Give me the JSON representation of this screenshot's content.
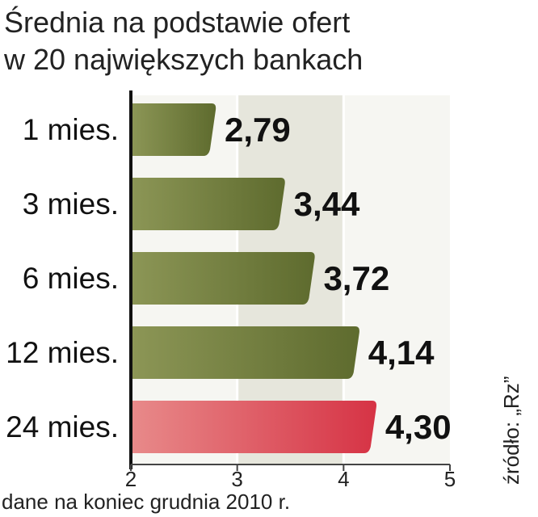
{
  "chart_data": {
    "type": "bar",
    "orientation": "horizontal",
    "title_lines": [
      "Średnia na podstawie ofert",
      "w 20 największych bankach"
    ],
    "categories": [
      "1 mies.",
      "3 mies.",
      "6 mies.",
      "12 mies.",
      "24 mies."
    ],
    "values": [
      2.79,
      3.44,
      3.72,
      4.14,
      4.3
    ],
    "value_labels": [
      "2,79",
      "3,44",
      "3,72",
      "4,14",
      "4,30"
    ],
    "highlight_index": 4,
    "xlim": [
      2,
      5
    ],
    "x_ticks": [
      "2",
      "3",
      "4",
      "5"
    ],
    "grid": true,
    "note": "dane na koniec grudnia 2010 r.",
    "source": "źródło: „Rz”",
    "colors": {
      "bar": "#5e6b2e",
      "bar_light": "#8c9656",
      "highlight": "#d63345",
      "highlight_light": "#e88a8a",
      "highlight_label": "#c8102e",
      "shading": "#e6e6dc"
    }
  }
}
